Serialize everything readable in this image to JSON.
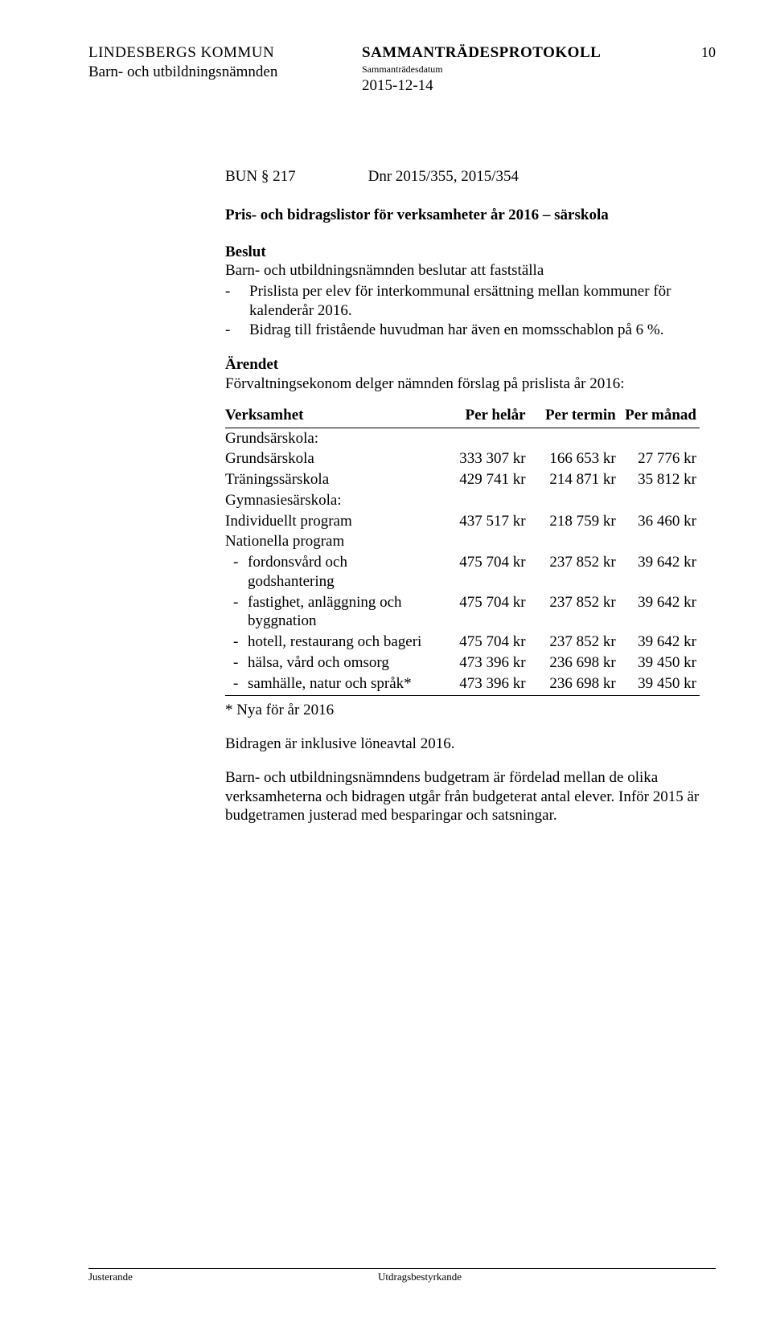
{
  "header": {
    "org": "LINDESBERGS KOMMUN",
    "protocol": "SAMMANTRÄDESPROTOKOLL",
    "page_no": "10",
    "subdate_label": "Sammanträdesdatum",
    "committee": "Barn- och utbildningsnämnden",
    "date": "2015-12-14"
  },
  "item": {
    "id": "BUN § 217",
    "dnr": "Dnr 2015/355, 2015/354"
  },
  "title": "Pris- och bidragslistor för verksamheter år 2016 – särskola",
  "beslut": {
    "heading": "Beslut",
    "intro": "Barn- och utbildningsnämnden beslutar att fastställa",
    "bullets": [
      "Prislista per elev för interkommunal ersättning mellan kommuner för kalenderår 2016.",
      "Bidrag till fristående huvudman har även en momsschablon på 6 %."
    ]
  },
  "arendet": {
    "heading": "Ärendet",
    "intro": "Förvaltningsekonom delger nämnden förslag på prislista år 2016:"
  },
  "table": {
    "columns": [
      "Verksamhet",
      "Per helår",
      "Per termin",
      "Per månad"
    ],
    "rows": [
      {
        "label": "Grundsärskola:",
        "indent": 0,
        "helar": "",
        "termin": "",
        "manad": ""
      },
      {
        "label": "Grundsärskola",
        "indent": 0,
        "helar": "333 307 kr",
        "termin": "166 653 kr",
        "manad": "27 776 kr"
      },
      {
        "label": "Träningssärskola",
        "indent": 0,
        "helar": "429 741 kr",
        "termin": "214 871 kr",
        "manad": "35 812 kr"
      },
      {
        "label": "Gymnasiesärskola:",
        "indent": 0,
        "helar": "",
        "termin": "",
        "manad": ""
      },
      {
        "label": "Individuellt program",
        "indent": 0,
        "helar": "437 517 kr",
        "termin": "218 759 kr",
        "manad": "36 460 kr"
      },
      {
        "label": "Nationella program",
        "indent": 0,
        "helar": "",
        "termin": "",
        "manad": ""
      },
      {
        "label": "fordonsvård och godshantering",
        "indent": 1,
        "helar": "475 704 kr",
        "termin": "237 852 kr",
        "manad": "39 642 kr"
      },
      {
        "label": "fastighet, anläggning och byggnation",
        "indent": 1,
        "helar": "475 704 kr",
        "termin": "237 852 kr",
        "manad": "39 642 kr"
      },
      {
        "label": "hotell, restaurang och bageri",
        "indent": 1,
        "helar": "475 704 kr",
        "termin": "237 852 kr",
        "manad": "39 642 kr"
      },
      {
        "label": "hälsa, vård och omsorg",
        "indent": 1,
        "helar": "473 396 kr",
        "termin": "236 698 kr",
        "manad": "39 450 kr"
      },
      {
        "label": "samhälle, natur och språk*",
        "indent": 1,
        "helar": "473 396 kr",
        "termin": "236 698 kr",
        "manad": "39 450 kr"
      }
    ]
  },
  "footnote": "* Nya för år 2016",
  "after": [
    "Bidragen är inklusive löneavtal 2016.",
    "Barn- och utbildningsnämndens budgetram är fördelad mellan de olika verksamheterna och bidragen utgår från budgeterat antal elever. Inför 2015 är budgetramen justerad med besparingar och satsningar."
  ],
  "footer": {
    "left": "Justerande",
    "right": "Utdragsbestyrkande"
  }
}
